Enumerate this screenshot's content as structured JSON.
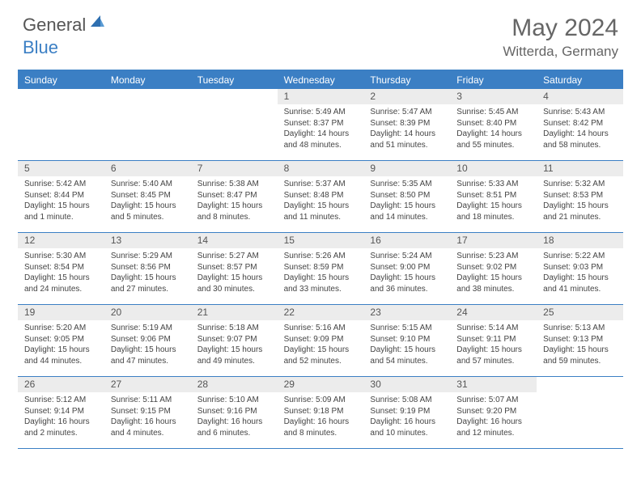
{
  "brand": {
    "part1": "General",
    "part2": "Blue"
  },
  "title": "May 2024",
  "location": "Witterda, Germany",
  "colors": {
    "accent": "#3b7fc4",
    "header_bg": "#ececec",
    "text": "#444444",
    "title_text": "#666666"
  },
  "day_names": [
    "Sunday",
    "Monday",
    "Tuesday",
    "Wednesday",
    "Thursday",
    "Friday",
    "Saturday"
  ],
  "weeks": [
    [
      null,
      null,
      null,
      {
        "n": "1",
        "sr": "Sunrise: 5:49 AM",
        "ss": "Sunset: 8:37 PM",
        "d1": "Daylight: 14 hours",
        "d2": "and 48 minutes."
      },
      {
        "n": "2",
        "sr": "Sunrise: 5:47 AM",
        "ss": "Sunset: 8:39 PM",
        "d1": "Daylight: 14 hours",
        "d2": "and 51 minutes."
      },
      {
        "n": "3",
        "sr": "Sunrise: 5:45 AM",
        "ss": "Sunset: 8:40 PM",
        "d1": "Daylight: 14 hours",
        "d2": "and 55 minutes."
      },
      {
        "n": "4",
        "sr": "Sunrise: 5:43 AM",
        "ss": "Sunset: 8:42 PM",
        "d1": "Daylight: 14 hours",
        "d2": "and 58 minutes."
      }
    ],
    [
      {
        "n": "5",
        "sr": "Sunrise: 5:42 AM",
        "ss": "Sunset: 8:44 PM",
        "d1": "Daylight: 15 hours",
        "d2": "and 1 minute."
      },
      {
        "n": "6",
        "sr": "Sunrise: 5:40 AM",
        "ss": "Sunset: 8:45 PM",
        "d1": "Daylight: 15 hours",
        "d2": "and 5 minutes."
      },
      {
        "n": "7",
        "sr": "Sunrise: 5:38 AM",
        "ss": "Sunset: 8:47 PM",
        "d1": "Daylight: 15 hours",
        "d2": "and 8 minutes."
      },
      {
        "n": "8",
        "sr": "Sunrise: 5:37 AM",
        "ss": "Sunset: 8:48 PM",
        "d1": "Daylight: 15 hours",
        "d2": "and 11 minutes."
      },
      {
        "n": "9",
        "sr": "Sunrise: 5:35 AM",
        "ss": "Sunset: 8:50 PM",
        "d1": "Daylight: 15 hours",
        "d2": "and 14 minutes."
      },
      {
        "n": "10",
        "sr": "Sunrise: 5:33 AM",
        "ss": "Sunset: 8:51 PM",
        "d1": "Daylight: 15 hours",
        "d2": "and 18 minutes."
      },
      {
        "n": "11",
        "sr": "Sunrise: 5:32 AM",
        "ss": "Sunset: 8:53 PM",
        "d1": "Daylight: 15 hours",
        "d2": "and 21 minutes."
      }
    ],
    [
      {
        "n": "12",
        "sr": "Sunrise: 5:30 AM",
        "ss": "Sunset: 8:54 PM",
        "d1": "Daylight: 15 hours",
        "d2": "and 24 minutes."
      },
      {
        "n": "13",
        "sr": "Sunrise: 5:29 AM",
        "ss": "Sunset: 8:56 PM",
        "d1": "Daylight: 15 hours",
        "d2": "and 27 minutes."
      },
      {
        "n": "14",
        "sr": "Sunrise: 5:27 AM",
        "ss": "Sunset: 8:57 PM",
        "d1": "Daylight: 15 hours",
        "d2": "and 30 minutes."
      },
      {
        "n": "15",
        "sr": "Sunrise: 5:26 AM",
        "ss": "Sunset: 8:59 PM",
        "d1": "Daylight: 15 hours",
        "d2": "and 33 minutes."
      },
      {
        "n": "16",
        "sr": "Sunrise: 5:24 AM",
        "ss": "Sunset: 9:00 PM",
        "d1": "Daylight: 15 hours",
        "d2": "and 36 minutes."
      },
      {
        "n": "17",
        "sr": "Sunrise: 5:23 AM",
        "ss": "Sunset: 9:02 PM",
        "d1": "Daylight: 15 hours",
        "d2": "and 38 minutes."
      },
      {
        "n": "18",
        "sr": "Sunrise: 5:22 AM",
        "ss": "Sunset: 9:03 PM",
        "d1": "Daylight: 15 hours",
        "d2": "and 41 minutes."
      }
    ],
    [
      {
        "n": "19",
        "sr": "Sunrise: 5:20 AM",
        "ss": "Sunset: 9:05 PM",
        "d1": "Daylight: 15 hours",
        "d2": "and 44 minutes."
      },
      {
        "n": "20",
        "sr": "Sunrise: 5:19 AM",
        "ss": "Sunset: 9:06 PM",
        "d1": "Daylight: 15 hours",
        "d2": "and 47 minutes."
      },
      {
        "n": "21",
        "sr": "Sunrise: 5:18 AM",
        "ss": "Sunset: 9:07 PM",
        "d1": "Daylight: 15 hours",
        "d2": "and 49 minutes."
      },
      {
        "n": "22",
        "sr": "Sunrise: 5:16 AM",
        "ss": "Sunset: 9:09 PM",
        "d1": "Daylight: 15 hours",
        "d2": "and 52 minutes."
      },
      {
        "n": "23",
        "sr": "Sunrise: 5:15 AM",
        "ss": "Sunset: 9:10 PM",
        "d1": "Daylight: 15 hours",
        "d2": "and 54 minutes."
      },
      {
        "n": "24",
        "sr": "Sunrise: 5:14 AM",
        "ss": "Sunset: 9:11 PM",
        "d1": "Daylight: 15 hours",
        "d2": "and 57 minutes."
      },
      {
        "n": "25",
        "sr": "Sunrise: 5:13 AM",
        "ss": "Sunset: 9:13 PM",
        "d1": "Daylight: 15 hours",
        "d2": "and 59 minutes."
      }
    ],
    [
      {
        "n": "26",
        "sr": "Sunrise: 5:12 AM",
        "ss": "Sunset: 9:14 PM",
        "d1": "Daylight: 16 hours",
        "d2": "and 2 minutes."
      },
      {
        "n": "27",
        "sr": "Sunrise: 5:11 AM",
        "ss": "Sunset: 9:15 PM",
        "d1": "Daylight: 16 hours",
        "d2": "and 4 minutes."
      },
      {
        "n": "28",
        "sr": "Sunrise: 5:10 AM",
        "ss": "Sunset: 9:16 PM",
        "d1": "Daylight: 16 hours",
        "d2": "and 6 minutes."
      },
      {
        "n": "29",
        "sr": "Sunrise: 5:09 AM",
        "ss": "Sunset: 9:18 PM",
        "d1": "Daylight: 16 hours",
        "d2": "and 8 minutes."
      },
      {
        "n": "30",
        "sr": "Sunrise: 5:08 AM",
        "ss": "Sunset: 9:19 PM",
        "d1": "Daylight: 16 hours",
        "d2": "and 10 minutes."
      },
      {
        "n": "31",
        "sr": "Sunrise: 5:07 AM",
        "ss": "Sunset: 9:20 PM",
        "d1": "Daylight: 16 hours",
        "d2": "and 12 minutes."
      },
      null
    ]
  ]
}
